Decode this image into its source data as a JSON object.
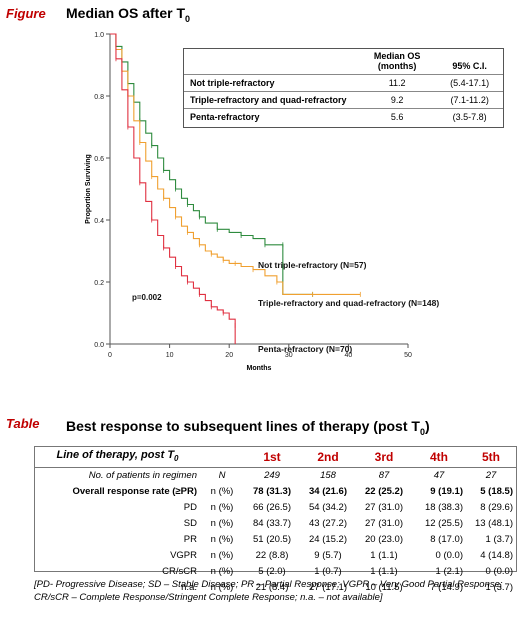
{
  "figure": {
    "tag": "Figure",
    "title_main": "Median OS after T",
    "title_sub": "0",
    "annotation_p": "p=0.002",
    "legend": {
      "col_median": "Median OS",
      "col_median_unit": "(months)",
      "col_ci": "95% C.I.",
      "rows": [
        {
          "name": "Not triple-refractory",
          "median": "11.2",
          "ci": "(5.4-17.1)"
        },
        {
          "name": "Triple-refractory and quad-refractory",
          "median": "9.2",
          "ci": "(7.1-11.2)"
        },
        {
          "name": "Penta-refractory",
          "median": "5.6",
          "ci": "(3.5-7.8)"
        }
      ]
    }
  },
  "chart_data": {
    "type": "line",
    "title": "Median OS after T0",
    "xlabel": "Months",
    "ylabel": "Proportion Surviving",
    "xlim": [
      0,
      50
    ],
    "ylim": [
      0,
      1.0
    ],
    "xticks": [
      0,
      10,
      20,
      30,
      40,
      50
    ],
    "yticks": [
      0.0,
      0.2,
      0.4,
      0.6,
      0.8,
      1.0
    ],
    "ytick_labels": [
      "0.0",
      "0.2",
      "0.4",
      "0.6",
      "0.8",
      "1.0"
    ],
    "grid": false,
    "series": [
      {
        "name": "Not triple-refractory (N=57)",
        "color": "#2e8b3e",
        "x": [
          0,
          1,
          2,
          3,
          4,
          5,
          6,
          7,
          8,
          9,
          10,
          11,
          12,
          13,
          14,
          15,
          16,
          18,
          20,
          22,
          24,
          26,
          28,
          29,
          29,
          34
        ],
        "y": [
          1.0,
          0.96,
          0.91,
          0.84,
          0.78,
          0.72,
          0.68,
          0.64,
          0.6,
          0.56,
          0.53,
          0.5,
          0.47,
          0.45,
          0.43,
          0.41,
          0.39,
          0.37,
          0.36,
          0.35,
          0.34,
          0.32,
          0.32,
          0.32,
          0.16,
          0.16
        ]
      },
      {
        "name": "Triple-refractory and quad-refractory (N=148)",
        "color": "#f0a030",
        "x": [
          0,
          1,
          2,
          3,
          4,
          5,
          6,
          7,
          8,
          9,
          10,
          11,
          12,
          13,
          14,
          15,
          16,
          17,
          18,
          19,
          20,
          21,
          22,
          24,
          26,
          28,
          29,
          34,
          36,
          42
        ],
        "y": [
          1.0,
          0.95,
          0.88,
          0.8,
          0.72,
          0.65,
          0.59,
          0.54,
          0.5,
          0.47,
          0.44,
          0.41,
          0.38,
          0.36,
          0.34,
          0.32,
          0.3,
          0.29,
          0.28,
          0.27,
          0.26,
          0.26,
          0.25,
          0.24,
          0.22,
          0.2,
          0.16,
          0.16,
          0.16,
          0.16
        ]
      },
      {
        "name": "Penta-refractory (N=70)",
        "color": "#e03040",
        "x": [
          0,
          1,
          2,
          3,
          4,
          5,
          6,
          7,
          8,
          9,
          10,
          11,
          12,
          13,
          14,
          15,
          16,
          17,
          18,
          19,
          20,
          21,
          21
        ],
        "y": [
          1.0,
          0.92,
          0.82,
          0.7,
          0.6,
          0.52,
          0.46,
          0.4,
          0.35,
          0.31,
          0.28,
          0.25,
          0.22,
          0.2,
          0.18,
          0.16,
          0.14,
          0.12,
          0.11,
          0.1,
          0.08,
          0.06,
          0.0
        ]
      }
    ]
  },
  "table": {
    "tag": "Table",
    "title_main": "Best response to subsequent lines of therapy (post T",
    "title_sub": "0",
    "title_end": ")",
    "header_label_main": "Line of therapy, post T",
    "header_label_sub": "0",
    "lines": [
      "1st",
      "2nd",
      "3rd",
      "4th",
      "5th"
    ],
    "n_row": {
      "label": "No. of patients in regimen",
      "unit": "N",
      "values": [
        "249",
        "158",
        "87",
        "47",
        "27"
      ]
    },
    "orr_row": {
      "label": "Overall response rate (≥PR)",
      "unit": "n (%)",
      "values": [
        "78 (31.3)",
        "34 (21.6)",
        "22 (25.2)",
        "9 (19.1)",
        "5 (18.5)"
      ]
    },
    "rows": [
      {
        "label": "PD",
        "unit": "n (%)",
        "values": [
          "66 (26.5)",
          "54 (34.2)",
          "27 (31.0)",
          "18 (38.3)",
          "8 (29.6)"
        ]
      },
      {
        "label": "SD",
        "unit": "n (%)",
        "values": [
          "84 (33.7)",
          "43 (27.2)",
          "27 (31.0)",
          "12 (25.5)",
          "13 (48.1)"
        ]
      },
      {
        "label": "PR",
        "unit": "n (%)",
        "values": [
          "51 (20.5)",
          "24 (15.2)",
          "20 (23.0)",
          "8 (17.0)",
          "1 (3.7)"
        ]
      },
      {
        "label": "VGPR",
        "unit": "n (%)",
        "values": [
          "22 (8.8)",
          "9 (5.7)",
          "1 (1.1)",
          "0 (0.0)",
          "4 (14.8)"
        ]
      },
      {
        "label": "CR/sCR",
        "unit": "n (%)",
        "values": [
          "5 (2.0)",
          "1 (0.7)",
          "1 (1.1)",
          "1 (2.1)",
          "0 (0.0)"
        ]
      },
      {
        "label": "n.a.",
        "unit": "n (%)",
        "values": [
          "21 (8.4)",
          "27 (17.1)",
          "10 (11.5)",
          "7 (14.9)",
          "1 (3.7)"
        ]
      }
    ],
    "footnote": "[PD- Progressive Disease; SD – Stable Disease; PR – Partial Response; VGPR – Very Good Partial Response; CR/sCR – Complete Response/Stringent Complete Response; n.a. – not available]"
  }
}
